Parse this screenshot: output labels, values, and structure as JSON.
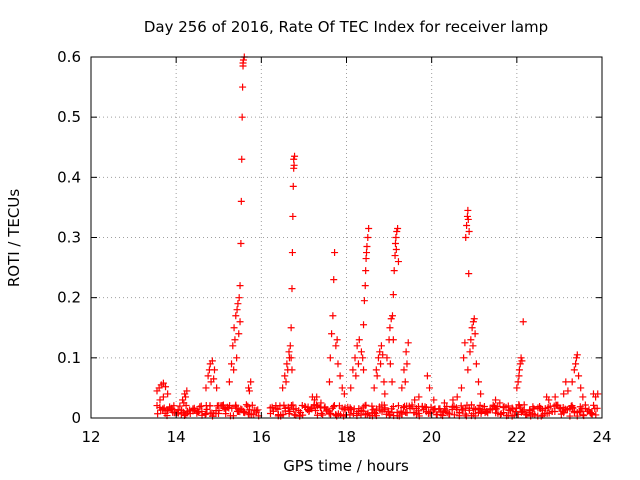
{
  "chart_data": {
    "type": "scatter",
    "title": "Day 256 of 2016, Rate Of TEC Index for receiver lamp",
    "xlabel": "GPS time / hours",
    "ylabel": "ROTI / TECUs",
    "xlim": [
      12,
      24
    ],
    "ylim": [
      0,
      0.6
    ],
    "x_ticks": [
      12,
      14,
      16,
      18,
      20,
      22,
      24
    ],
    "x_tick_labels": [
      "12",
      "14",
      "16",
      "18",
      "20",
      "22",
      "24"
    ],
    "y_ticks": [
      0,
      0.1,
      0.2,
      0.3,
      0.4,
      0.5,
      0.6
    ],
    "y_tick_labels": [
      "0",
      "0.1",
      "0.2",
      "0.3",
      "0.4",
      "0.5",
      "0.6"
    ],
    "grid": true,
    "marker": "+",
    "color": "#ff0000",
    "series": [
      {
        "name": "ROTI",
        "points": [
          [
            13.55,
            0.045
          ],
          [
            13.6,
            0.05
          ],
          [
            13.65,
            0.055
          ],
          [
            13.7,
            0.058
          ],
          [
            13.75,
            0.052
          ],
          [
            13.8,
            0.04
          ],
          [
            13.62,
            0.03
          ],
          [
            13.7,
            0.035
          ],
          [
            14.15,
            0.03
          ],
          [
            14.2,
            0.04
          ],
          [
            14.25,
            0.045
          ],
          [
            14.22,
            0.035
          ],
          [
            14.18,
            0.025
          ],
          [
            14.7,
            0.05
          ],
          [
            14.75,
            0.07
          ],
          [
            14.8,
            0.09
          ],
          [
            14.85,
            0.095
          ],
          [
            14.9,
            0.08
          ],
          [
            14.82,
            0.06
          ],
          [
            14.78,
            0.08
          ],
          [
            14.88,
            0.065
          ],
          [
            14.95,
            0.05
          ],
          [
            15.25,
            0.06
          ],
          [
            15.3,
            0.09
          ],
          [
            15.33,
            0.12
          ],
          [
            15.36,
            0.15
          ],
          [
            15.4,
            0.17
          ],
          [
            15.43,
            0.18
          ],
          [
            15.45,
            0.19
          ],
          [
            15.48,
            0.2
          ],
          [
            15.5,
            0.16
          ],
          [
            15.38,
            0.13
          ],
          [
            15.42,
            0.1
          ],
          [
            15.35,
            0.08
          ],
          [
            15.47,
            0.14
          ],
          [
            15.5,
            0.22
          ],
          [
            15.52,
            0.29
          ],
          [
            15.53,
            0.36
          ],
          [
            15.54,
            0.43
          ],
          [
            15.55,
            0.5
          ],
          [
            15.56,
            0.55
          ],
          [
            15.57,
            0.585
          ],
          [
            15.58,
            0.595
          ],
          [
            15.6,
            0.6
          ],
          [
            15.57,
            0.59
          ],
          [
            15.7,
            0.05
          ],
          [
            15.75,
            0.06
          ],
          [
            15.72,
            0.045
          ],
          [
            16.5,
            0.05
          ],
          [
            16.55,
            0.07
          ],
          [
            16.6,
            0.09
          ],
          [
            16.65,
            0.11
          ],
          [
            16.68,
            0.12
          ],
          [
            16.7,
            0.1
          ],
          [
            16.62,
            0.08
          ],
          [
            16.58,
            0.06
          ],
          [
            16.72,
            0.08
          ],
          [
            16.66,
            0.1
          ],
          [
            16.7,
            0.15
          ],
          [
            16.72,
            0.215
          ],
          [
            16.73,
            0.275
          ],
          [
            16.74,
            0.335
          ],
          [
            16.75,
            0.385
          ],
          [
            16.76,
            0.415
          ],
          [
            16.77,
            0.42
          ],
          [
            16.78,
            0.435
          ],
          [
            16.76,
            0.43
          ],
          [
            17.2,
            0.035
          ],
          [
            17.25,
            0.03
          ],
          [
            17.3,
            0.035
          ],
          [
            17.4,
            0.025
          ],
          [
            17.6,
            0.06
          ],
          [
            17.62,
            0.1
          ],
          [
            17.65,
            0.14
          ],
          [
            17.68,
            0.17
          ],
          [
            17.7,
            0.23
          ],
          [
            17.72,
            0.275
          ],
          [
            17.75,
            0.12
          ],
          [
            17.8,
            0.09
          ],
          [
            17.78,
            0.13
          ],
          [
            17.85,
            0.07
          ],
          [
            17.9,
            0.05
          ],
          [
            17.95,
            0.04
          ],
          [
            18.1,
            0.05
          ],
          [
            18.15,
            0.08
          ],
          [
            18.2,
            0.1
          ],
          [
            18.25,
            0.12
          ],
          [
            18.3,
            0.13
          ],
          [
            18.35,
            0.11
          ],
          [
            18.28,
            0.09
          ],
          [
            18.22,
            0.07
          ],
          [
            18.4,
            0.08
          ],
          [
            18.38,
            0.1
          ],
          [
            18.4,
            0.155
          ],
          [
            18.42,
            0.195
          ],
          [
            18.44,
            0.22
          ],
          [
            18.45,
            0.245
          ],
          [
            18.46,
            0.265
          ],
          [
            18.48,
            0.285
          ],
          [
            18.5,
            0.3
          ],
          [
            18.52,
            0.315
          ],
          [
            18.47,
            0.275
          ],
          [
            18.65,
            0.05
          ],
          [
            18.7,
            0.08
          ],
          [
            18.75,
            0.1
          ],
          [
            18.78,
            0.11
          ],
          [
            18.82,
            0.12
          ],
          [
            18.85,
            0.105
          ],
          [
            18.8,
            0.09
          ],
          [
            18.72,
            0.07
          ],
          [
            18.88,
            0.06
          ],
          [
            18.9,
            0.04
          ],
          [
            18.95,
            0.1
          ],
          [
            19.0,
            0.13
          ],
          [
            19.02,
            0.15
          ],
          [
            19.05,
            0.165
          ],
          [
            19.08,
            0.17
          ],
          [
            19.1,
            0.13
          ],
          [
            19.03,
            0.09
          ],
          [
            19.07,
            0.06
          ],
          [
            19.1,
            0.205
          ],
          [
            19.12,
            0.245
          ],
          [
            19.14,
            0.27
          ],
          [
            19.15,
            0.29
          ],
          [
            19.16,
            0.3
          ],
          [
            19.18,
            0.31
          ],
          [
            19.2,
            0.315
          ],
          [
            19.17,
            0.28
          ],
          [
            19.22,
            0.26
          ],
          [
            19.3,
            0.05
          ],
          [
            19.35,
            0.08
          ],
          [
            19.4,
            0.11
          ],
          [
            19.45,
            0.125
          ],
          [
            19.42,
            0.09
          ],
          [
            19.38,
            0.06
          ],
          [
            19.6,
            0.03
          ],
          [
            19.7,
            0.035
          ],
          [
            19.9,
            0.07
          ],
          [
            19.95,
            0.05
          ],
          [
            20.05,
            0.03
          ],
          [
            20.3,
            0.025
          ],
          [
            20.5,
            0.03
          ],
          [
            20.6,
            0.035
          ],
          [
            20.7,
            0.05
          ],
          [
            20.75,
            0.1
          ],
          [
            20.78,
            0.125
          ],
          [
            20.8,
            0.3
          ],
          [
            20.82,
            0.32
          ],
          [
            20.84,
            0.335
          ],
          [
            20.85,
            0.345
          ],
          [
            20.86,
            0.33
          ],
          [
            20.88,
            0.31
          ],
          [
            20.87,
            0.24
          ],
          [
            20.85,
            0.08
          ],
          [
            20.9,
            0.11
          ],
          [
            20.92,
            0.13
          ],
          [
            20.95,
            0.15
          ],
          [
            20.98,
            0.16
          ],
          [
            21.0,
            0.165
          ],
          [
            21.02,
            0.14
          ],
          [
            20.97,
            0.12
          ],
          [
            21.05,
            0.09
          ],
          [
            21.1,
            0.06
          ],
          [
            21.15,
            0.04
          ],
          [
            21.5,
            0.03
          ],
          [
            21.6,
            0.025
          ],
          [
            21.8,
            0.02
          ],
          [
            22.0,
            0.05
          ],
          [
            22.05,
            0.07
          ],
          [
            22.08,
            0.09
          ],
          [
            22.1,
            0.1
          ],
          [
            22.12,
            0.095
          ],
          [
            22.15,
            0.16
          ],
          [
            22.06,
            0.08
          ],
          [
            22.03,
            0.06
          ],
          [
            22.7,
            0.035
          ],
          [
            22.75,
            0.03
          ],
          [
            22.9,
            0.035
          ],
          [
            23.1,
            0.04
          ],
          [
            23.15,
            0.06
          ],
          [
            23.2,
            0.045
          ],
          [
            23.3,
            0.06
          ],
          [
            23.35,
            0.08
          ],
          [
            23.4,
            0.1
          ],
          [
            23.42,
            0.105
          ],
          [
            23.38,
            0.09
          ],
          [
            23.45,
            0.07
          ],
          [
            23.5,
            0.05
          ],
          [
            23.55,
            0.035
          ],
          [
            23.8,
            0.04
          ],
          [
            23.85,
            0.035
          ],
          [
            23.9,
            0.04
          ]
        ],
        "baseline_segments": [
          {
            "x_start": 13.55,
            "x_end": 15.95,
            "level": 0.012
          },
          {
            "x_start": 16.2,
            "x_end": 23.9,
            "level": 0.012
          }
        ]
      }
    ]
  }
}
